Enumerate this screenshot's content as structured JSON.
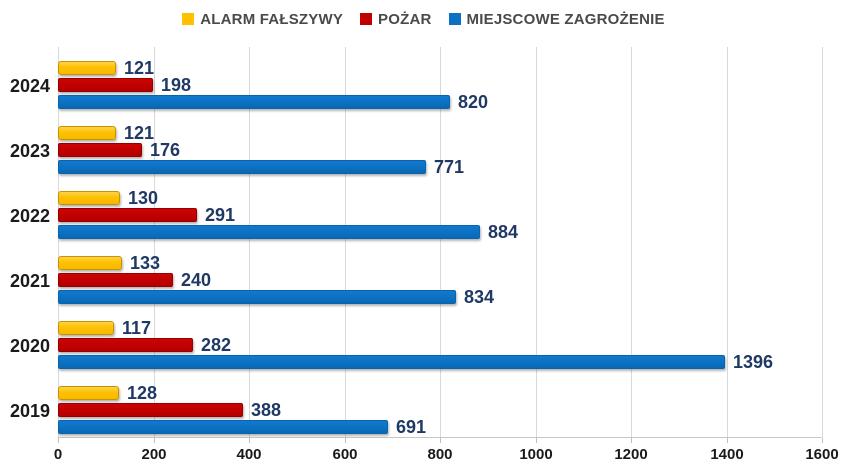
{
  "chart_data": {
    "type": "bar",
    "orientation": "horizontal",
    "title": "",
    "categories": [
      "2024",
      "2023",
      "2022",
      "2021",
      "2020",
      "2019"
    ],
    "series": [
      {
        "name": "ALARM FAŁSZYWY",
        "color": "#ffc000",
        "values": [
          121,
          121,
          130,
          133,
          117,
          128
        ]
      },
      {
        "name": "POŻAR",
        "color": "#c00000",
        "values": [
          198,
          176,
          291,
          240,
          282,
          388
        ]
      },
      {
        "name": "MIEJSCOWE ZAGROŻENIE",
        "color": "#0c71c2",
        "values": [
          820,
          771,
          884,
          834,
          1396,
          691
        ]
      }
    ],
    "x_axis": {
      "min": 0,
      "max": 1600,
      "ticks": [
        0,
        200,
        400,
        600,
        800,
        1000,
        1200,
        1400,
        1600
      ]
    },
    "ylabel": "",
    "xlabel": "",
    "grid": true,
    "legend_position": "top",
    "value_labels": true
  },
  "colors": {
    "background": "#ffffff",
    "gridline": "#d9d9d9",
    "axis_line": "#c6c6c6",
    "value_label_text": "#1f3864",
    "category_label_text": "#1a1a1a",
    "legend_text": "#4a4a4a"
  }
}
